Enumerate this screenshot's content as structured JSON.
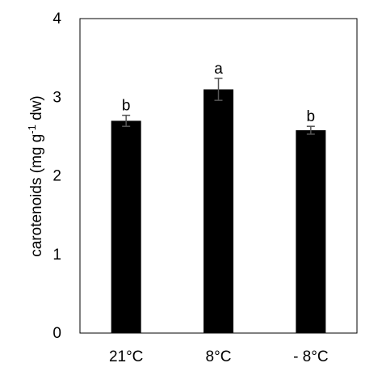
{
  "chart_data": {
    "type": "bar",
    "categories": [
      "21°C",
      "8°C",
      "- 8°C"
    ],
    "values": [
      2.7,
      3.1,
      2.58
    ],
    "errors": [
      0.07,
      0.14,
      0.05
    ],
    "significance_letters": [
      "b",
      "a",
      "b"
    ],
    "title": "",
    "xlabel": "",
    "ylabel_main": "carotenoids (mg g",
    "ylabel_sup": "-1",
    "ylabel_tail": " dw)",
    "ylim": [
      0,
      4
    ],
    "yticks": [
      "0",
      "1",
      "2",
      "3",
      "4"
    ],
    "grid": false,
    "legend": "none",
    "bar_color": "#000000",
    "error_bar_color": "#555555"
  }
}
